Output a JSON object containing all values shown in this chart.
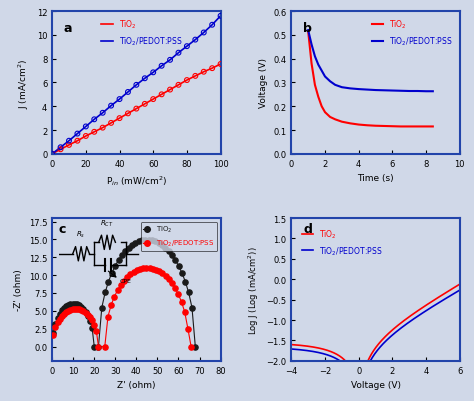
{
  "panel_a": {
    "red_x": [
      0,
      5,
      10,
      15,
      20,
      25,
      30,
      35,
      40,
      45,
      50,
      55,
      60,
      65,
      70,
      75,
      80,
      85,
      90,
      95,
      100
    ],
    "red_y": [
      0,
      0.38,
      0.75,
      1.1,
      1.5,
      1.85,
      2.2,
      2.6,
      3.0,
      3.4,
      3.8,
      4.2,
      4.6,
      5.0,
      5.4,
      5.8,
      6.2,
      6.55,
      6.9,
      7.2,
      7.55
    ],
    "blue_x": [
      0,
      5,
      10,
      15,
      20,
      25,
      30,
      35,
      40,
      45,
      50,
      55,
      60,
      65,
      70,
      75,
      80,
      85,
      90,
      95,
      100
    ],
    "blue_y": [
      0,
      0.55,
      1.1,
      1.7,
      2.3,
      2.9,
      3.45,
      4.05,
      4.6,
      5.2,
      5.8,
      6.35,
      6.85,
      7.4,
      7.9,
      8.5,
      9.05,
      9.6,
      10.2,
      10.85,
      11.6
    ],
    "xlabel": "P$_{in}$ (mW/cm$^2$)",
    "ylabel": "J (mA/cm$^2$)",
    "xlim": [
      0,
      100
    ],
    "ylim": [
      0,
      12
    ],
    "yticks": [
      0,
      2,
      4,
      6,
      8,
      10,
      12
    ],
    "xticks": [
      0,
      20,
      40,
      60,
      80,
      100
    ],
    "label": "a"
  },
  "panel_b": {
    "red_t": [
      1.0,
      1.2,
      1.4,
      1.6,
      1.8,
      2.0,
      2.3,
      2.6,
      3.0,
      3.5,
      4.0,
      4.5,
      5.0,
      5.5,
      6.0,
      6.5,
      7.0,
      7.5,
      8.0,
      8.4
    ],
    "red_v": [
      0.515,
      0.38,
      0.29,
      0.24,
      0.2,
      0.175,
      0.155,
      0.145,
      0.135,
      0.128,
      0.123,
      0.12,
      0.118,
      0.117,
      0.116,
      0.115,
      0.115,
      0.115,
      0.115,
      0.115
    ],
    "blue_t": [
      1.0,
      1.2,
      1.4,
      1.6,
      1.8,
      2.0,
      2.3,
      2.6,
      3.0,
      3.5,
      4.0,
      4.5,
      5.0,
      5.5,
      6.0,
      6.5,
      7.0,
      7.5,
      8.0,
      8.4
    ],
    "blue_v": [
      0.52,
      0.46,
      0.41,
      0.375,
      0.35,
      0.325,
      0.305,
      0.29,
      0.28,
      0.275,
      0.272,
      0.27,
      0.268,
      0.267,
      0.266,
      0.265,
      0.264,
      0.264,
      0.263,
      0.263
    ],
    "xlabel": "Time (s)",
    "ylabel": "Voltage (V)",
    "xlim": [
      0,
      10
    ],
    "ylim": [
      0,
      0.6
    ],
    "yticks": [
      0.0,
      0.1,
      0.2,
      0.3,
      0.4,
      0.5,
      0.6
    ],
    "xticks": [
      0,
      2,
      4,
      6,
      8,
      10
    ],
    "label": "b"
  },
  "panel_c": {
    "xlabel": "Z' (ohm)",
    "ylabel": "-Z' (ohm)",
    "xlim": [
      0,
      80
    ],
    "xticks": [
      0,
      10,
      20,
      30,
      40,
      50,
      60,
      70,
      80
    ],
    "label": "c"
  },
  "panel_d": {
    "xlabel": "Voltage (V)",
    "ylabel": "Log J (Log (mA/cm$^2$))",
    "xlim": [
      -4,
      6
    ],
    "ylim": [
      -2.0,
      1.5
    ],
    "xticks": [
      -4,
      -2,
      0,
      2,
      4,
      6
    ],
    "yticks": [
      -2.0,
      -1.5,
      -1.0,
      -0.5,
      0.0,
      0.5,
      1.0,
      1.5
    ],
    "label": "d"
  },
  "red_color": "#FF0000",
  "blue_color": "#0000CD",
  "black_color": "#1a1a1a",
  "bg_color": "#d0d8e8",
  "label_tio2": "TiO$_2$",
  "label_tio2_pedot": "TiO$_2$/PEDOT:PSS"
}
